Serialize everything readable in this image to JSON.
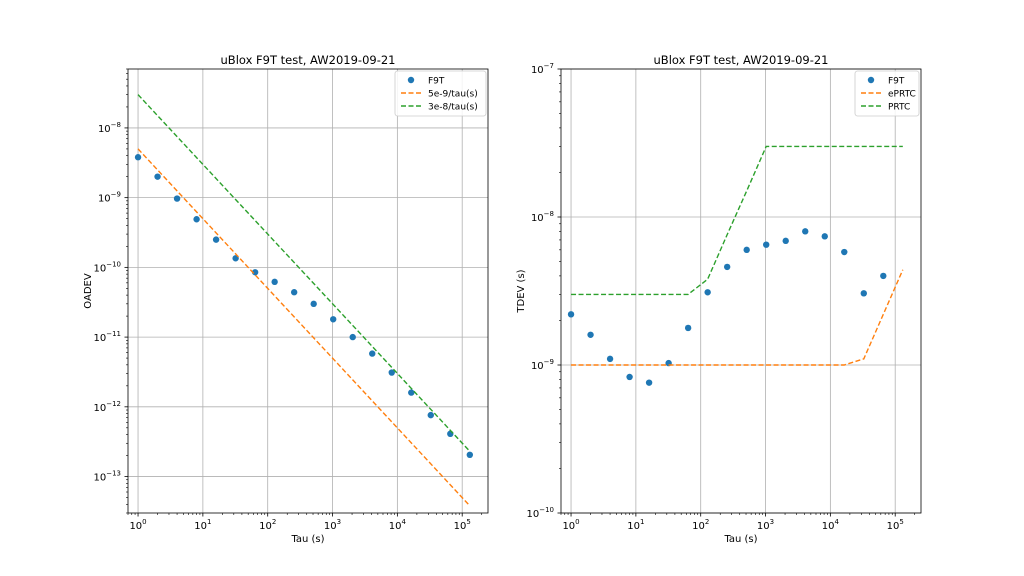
{
  "chart_data": [
    {
      "type": "scatter",
      "title": "uBlox F9T test, AW2019-09-21",
      "xlabel": "Tau (s)",
      "ylabel": "OADEV",
      "xscale": "log",
      "yscale": "log",
      "xlim": [
        0.7,
        250000
      ],
      "ylim": [
        3e-14,
        7e-08
      ],
      "x_ticks": [
        {
          "base": "10",
          "exp": "0",
          "value": 1
        },
        {
          "base": "10",
          "exp": "1",
          "value": 10
        },
        {
          "base": "10",
          "exp": "2",
          "value": 100
        },
        {
          "base": "10",
          "exp": "3",
          "value": 1000
        },
        {
          "base": "10",
          "exp": "4",
          "value": 10000
        },
        {
          "base": "10",
          "exp": "5",
          "value": 100000
        }
      ],
      "y_ticks": [
        {
          "base": "10",
          "exp": "−13",
          "value": 1e-13
        },
        {
          "base": "10",
          "exp": "−12",
          "value": 1e-12
        },
        {
          "base": "10",
          "exp": "−11",
          "value": 1e-11
        },
        {
          "base": "10",
          "exp": "−10",
          "value": 1e-10
        },
        {
          "base": "10",
          "exp": "−9",
          "value": 1e-09
        },
        {
          "base": "10",
          "exp": "−8",
          "value": 1e-08
        }
      ],
      "grid": true,
      "legend_position": "top-right",
      "series": [
        {
          "name": "F9T",
          "style": "markers",
          "color": "#1f77b4",
          "x": [
            1,
            2,
            4,
            8,
            16,
            32,
            64,
            128,
            256,
            512,
            1024,
            2048,
            4096,
            8192,
            16384,
            32768,
            65536,
            131072
          ],
          "y": [
            3.8e-09,
            2e-09,
            9.7e-10,
            4.9e-10,
            2.5e-10,
            1.35e-10,
            8.5e-11,
            6.2e-11,
            4.4e-11,
            3e-11,
            1.8e-11,
            1e-11,
            5.8e-12,
            3.1e-12,
            1.6e-12,
            7.6e-13,
            4.1e-13,
            2.05e-13
          ]
        },
        {
          "name": "5e-9/tau(s)",
          "style": "dashed",
          "color": "#ff7f0e",
          "x": [
            1,
            131072
          ],
          "y": [
            5e-09,
            3.8e-14
          ]
        },
        {
          "name": "3e-8/tau(s)",
          "style": "dashed",
          "color": "#2ca02c",
          "x": [
            1,
            131072
          ],
          "y": [
            3e-08,
            2.3e-13
          ]
        }
      ]
    },
    {
      "type": "scatter",
      "title": "uBlox F9T test, AW2019-09-21",
      "xlabel": "Tau (s)",
      "ylabel": "TDEV (s)",
      "xscale": "log",
      "yscale": "log",
      "xlim": [
        0.7,
        250000
      ],
      "ylim": [
        1e-10,
        1e-07
      ],
      "x_ticks": [
        {
          "base": "10",
          "exp": "0",
          "value": 1
        },
        {
          "base": "10",
          "exp": "1",
          "value": 10
        },
        {
          "base": "10",
          "exp": "2",
          "value": 100
        },
        {
          "base": "10",
          "exp": "3",
          "value": 1000
        },
        {
          "base": "10",
          "exp": "4",
          "value": 10000
        },
        {
          "base": "10",
          "exp": "5",
          "value": 100000
        }
      ],
      "y_ticks": [
        {
          "base": "10",
          "exp": "−10",
          "value": 1e-10
        },
        {
          "base": "10",
          "exp": "−9",
          "value": 1e-09
        },
        {
          "base": "10",
          "exp": "−8",
          "value": 1e-08
        },
        {
          "base": "10",
          "exp": "−7",
          "value": 1e-07
        }
      ],
      "grid": true,
      "legend_position": "top-right",
      "series": [
        {
          "name": "F9T",
          "style": "markers",
          "color": "#1f77b4",
          "x": [
            1,
            2,
            4,
            8,
            16,
            32,
            64,
            128,
            256,
            512,
            1024,
            2048,
            4096,
            8192,
            16384,
            32768,
            65536
          ],
          "y": [
            2.2e-09,
            1.6e-09,
            1.1e-09,
            8.3e-10,
            7.6e-10,
            1.03e-09,
            1.78e-09,
            3.1e-09,
            4.6e-09,
            6e-09,
            6.5e-09,
            6.9e-09,
            8e-09,
            7.4e-09,
            5.8e-09,
            3.05e-09,
            4e-09
          ]
        },
        {
          "name": "ePRTC",
          "style": "dashed",
          "color": "#ff7f0e",
          "x": [
            1,
            2,
            4,
            8,
            16,
            32,
            64,
            128,
            256,
            512,
            1024,
            2048,
            4096,
            8192,
            16384,
            32768,
            65536,
            131072
          ],
          "y": [
            1e-09,
            1e-09,
            1e-09,
            1e-09,
            1e-09,
            1e-09,
            1e-09,
            1e-09,
            1e-09,
            1e-09,
            1e-09,
            1e-09,
            1e-09,
            1e-09,
            1e-09,
            1.1e-09,
            2.2e-09,
            4.4e-09
          ]
        },
        {
          "name": "PRTC",
          "style": "dashed",
          "color": "#2ca02c",
          "x": [
            1,
            2,
            4,
            8,
            16,
            32,
            64,
            128,
            256,
            512,
            1024,
            2048,
            4096,
            8192,
            16384,
            32768,
            65536,
            131072
          ],
          "y": [
            3e-09,
            3e-09,
            3e-09,
            3e-09,
            3e-09,
            3e-09,
            3e-09,
            3.8e-09,
            7.6e-09,
            1.5e-08,
            3e-08,
            3e-08,
            3e-08,
            3e-08,
            3e-08,
            3e-08,
            3e-08,
            3e-08
          ]
        }
      ]
    }
  ]
}
